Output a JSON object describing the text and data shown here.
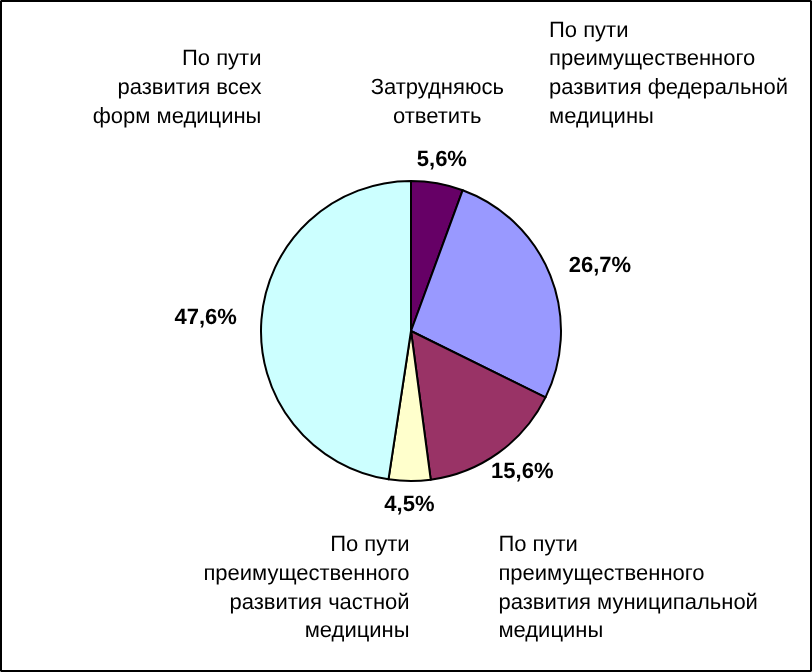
{
  "chart_data": {
    "type": "pie",
    "categories": [
      "Затрудняюсь\nответить",
      "По пути\nпреимущественного\nразвития федеральной\nмедицины",
      "По пути\nпреимущественного\nразвития муниципальной\nмедицины",
      "По пути\nпреимущественного\nразвития частной\nмедицины",
      "По пути\nразвития всех\nформ медицины"
    ],
    "values": [
      5.6,
      26.7,
      15.6,
      4.5,
      47.6
    ],
    "colors": [
      "#660066",
      "#9999ff",
      "#993366",
      "#ffffcc",
      "#ccffff"
    ],
    "value_labels": [
      "5,6%",
      "26,7%",
      "15,6%",
      "4,5%",
      "47,6%"
    ]
  }
}
